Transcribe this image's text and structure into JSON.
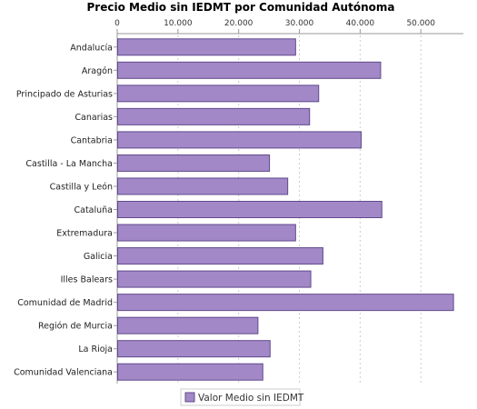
{
  "chart_data": {
    "type": "bar",
    "orientation": "horizontal",
    "title": "Precio Medio sin IEDMT por Comunidad Autónoma",
    "xlabel": "",
    "ylabel": "",
    "categories": [
      "Andalucía",
      "Aragón",
      "Principado de Asturias",
      "Canarias",
      "Cantabria",
      "Castilla - La Mancha",
      "Castilla y León",
      "Cataluña",
      "Extremadura",
      "Galicia",
      "Illes Balears",
      "Comunidad de Madrid",
      "Región de Murcia",
      "La Rioja",
      "Comunidad Valenciana"
    ],
    "series": [
      {
        "name": "Valor Medio sin IEDMT",
        "values": [
          29300,
          43300,
          33100,
          31600,
          40100,
          25000,
          28000,
          43500,
          29300,
          33800,
          31800,
          55300,
          23100,
          25100,
          23900
        ]
      }
    ],
    "xlim": [
      0,
      57000
    ],
    "x_ticks": [
      0,
      10000,
      20000,
      30000,
      40000,
      50000
    ],
    "x_tick_labels": [
      "0",
      "10.000",
      "20.000",
      "30.000",
      "40.000",
      "50.000"
    ],
    "x_axis_position": "top",
    "grid": true,
    "legend_position": "bottom",
    "colors": {
      "bar_fill": "#a388c8",
      "bar_stroke": "#5f4a8b",
      "grid": "#cccccc",
      "axis": "#999999"
    }
  }
}
